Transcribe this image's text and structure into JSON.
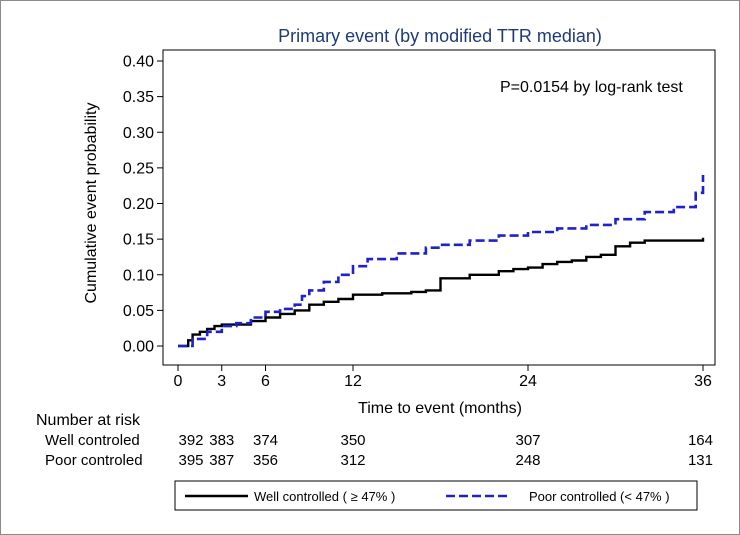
{
  "chart_data": {
    "type": "line",
    "title": "Primary event (by modified TTR median)",
    "annotation": "P=0.0154 by log-rank test",
    "xlabel": "Time to event (months)",
    "ylabel": "Cumulative event probability",
    "xlim": [
      0,
      36
    ],
    "ylim": [
      0,
      0.4
    ],
    "xticks": [
      0,
      3,
      6,
      12,
      24,
      36
    ],
    "xtick_labels": [
      "0",
      "3",
      "6",
      "12",
      "24",
      "36"
    ],
    "yticks": [
      0,
      0.05,
      0.1,
      0.15,
      0.2,
      0.25,
      0.3,
      0.35,
      0.4
    ],
    "ytick_labels": [
      "0.00",
      "0.05",
      "0.10",
      "0.15",
      "0.20",
      "0.25",
      "0.30",
      "0.35",
      "0.40"
    ],
    "grid": false,
    "legend_position": "bottom",
    "series": [
      {
        "name": "Well controlled ( ≥ 47% )",
        "color": "#000000",
        "style": "solid",
        "x": [
          0,
          0.7,
          1.0,
          1.5,
          2.0,
          2.5,
          3.0,
          5.0,
          6.0,
          7.0,
          8.0,
          9.0,
          10.0,
          11.0,
          12.0,
          14.0,
          16.0,
          17.0,
          18.0,
          20.0,
          22.0,
          23.0,
          24.0,
          25.0,
          26.0,
          27.0,
          28.0,
          29.0,
          30.0,
          31.0,
          32.0,
          35.0,
          36.0
        ],
        "y": [
          0,
          0.008,
          0.016,
          0.02,
          0.024,
          0.028,
          0.03,
          0.035,
          0.04,
          0.045,
          0.05,
          0.058,
          0.062,
          0.066,
          0.072,
          0.074,
          0.076,
          0.078,
          0.095,
          0.1,
          0.105,
          0.108,
          0.11,
          0.115,
          0.118,
          0.12,
          0.125,
          0.128,
          0.14,
          0.145,
          0.148,
          0.148,
          0.152
        ]
      },
      {
        "name": "Poor controlled (< 47% )",
        "color": "#1f22cc",
        "style": "dashed",
        "x": [
          0,
          1.0,
          2.0,
          3.0,
          4.0,
          5.0,
          6.0,
          7.0,
          8.0,
          8.5,
          9.0,
          10.0,
          11.0,
          12.0,
          13.0,
          15.0,
          17.0,
          18.0,
          20.0,
          22.0,
          24.0,
          26.0,
          28.0,
          30.0,
          32.0,
          34.0,
          35.5,
          36.0
        ],
        "y": [
          0,
          0.01,
          0.02,
          0.028,
          0.032,
          0.04,
          0.048,
          0.052,
          0.058,
          0.07,
          0.078,
          0.09,
          0.1,
          0.112,
          0.122,
          0.13,
          0.138,
          0.142,
          0.148,
          0.155,
          0.16,
          0.165,
          0.17,
          0.178,
          0.188,
          0.195,
          0.215,
          0.24
        ]
      }
    ],
    "risk_table": {
      "header": "Number at risk",
      "times": [
        0,
        3,
        6,
        12,
        24,
        36
      ],
      "rows": [
        {
          "label": "Well controled",
          "counts": [
            "392",
            "383",
            "374",
            "350",
            "307",
            "164"
          ]
        },
        {
          "label": "Poor controled",
          "counts": [
            "395",
            "387",
            "356",
            "312",
            "248",
            "131"
          ]
        }
      ]
    }
  }
}
